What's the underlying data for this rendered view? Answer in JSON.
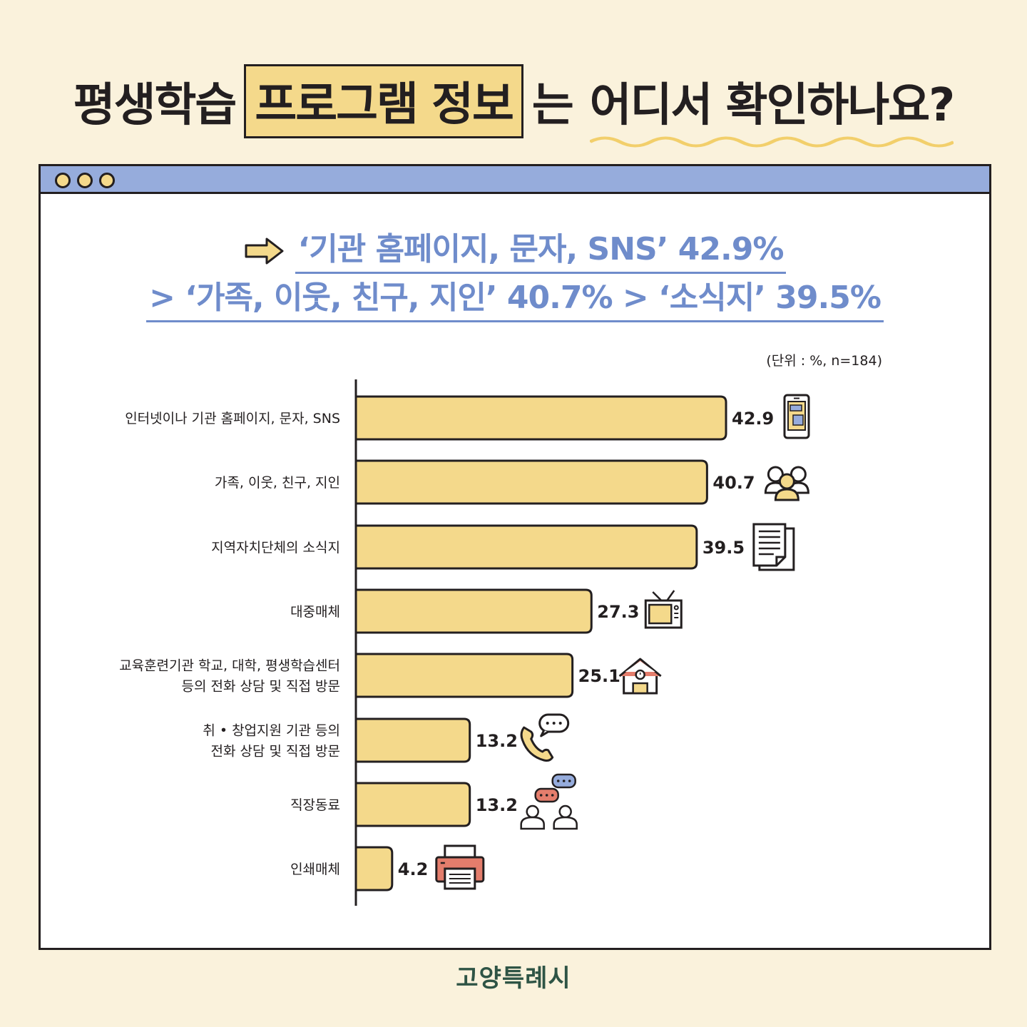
{
  "title": {
    "part1": "평생학습",
    "highlight": "프로그램 정보",
    "part2": "는",
    "part3": "어디서 확인하나요?"
  },
  "headline": {
    "line1": "‘기관 홈페이지, 문자, SNS’ 42.9%",
    "line2": "> ‘가족, 이웃, 친구, 지인’ 40.7% > ‘소식지’ 39.5%"
  },
  "unit_note": "(단위 : %, n=184)",
  "footer": "고양특례시",
  "colors": {
    "background": "#faf2dc",
    "bar_fill": "#f4d98b",
    "window_bar": "#96acdc",
    "headline": "#6f8ccb",
    "outline": "#231f20",
    "footer": "#2e5445"
  },
  "chart_data": {
    "type": "bar",
    "orientation": "horizontal",
    "categories": [
      [
        "인터넷이나 기관 홈페이지, 문자, SNS"
      ],
      [
        "가족, 이웃, 친구, 지인"
      ],
      [
        "지역자치단체의 소식지"
      ],
      [
        "대중매체"
      ],
      [
        "교육훈련기관 학교, 대학, 평생학습센터",
        "등의 전화 상담 및 직접 방문"
      ],
      [
        "취 • 창업지원 기관 등의",
        "전화 상담 및 직접 방문"
      ],
      [
        "직장동료"
      ],
      [
        "인쇄매체"
      ]
    ],
    "values": [
      42.9,
      40.7,
      39.5,
      27.3,
      25.1,
      13.2,
      13.2,
      4.2
    ],
    "value_labels": [
      "42.9",
      "40.7",
      "39.5",
      "27.3",
      "25.1",
      "13.2",
      "13.2",
      "4.2"
    ],
    "icons": [
      "smartphone-icon",
      "people-group-icon",
      "newsletter-icon",
      "tv-icon",
      "school-building-icon",
      "phone-call-icon",
      "coworkers-chat-icon",
      "printer-icon"
    ],
    "xlim": [
      0,
      42.9
    ],
    "grid": false,
    "legend": "none"
  }
}
